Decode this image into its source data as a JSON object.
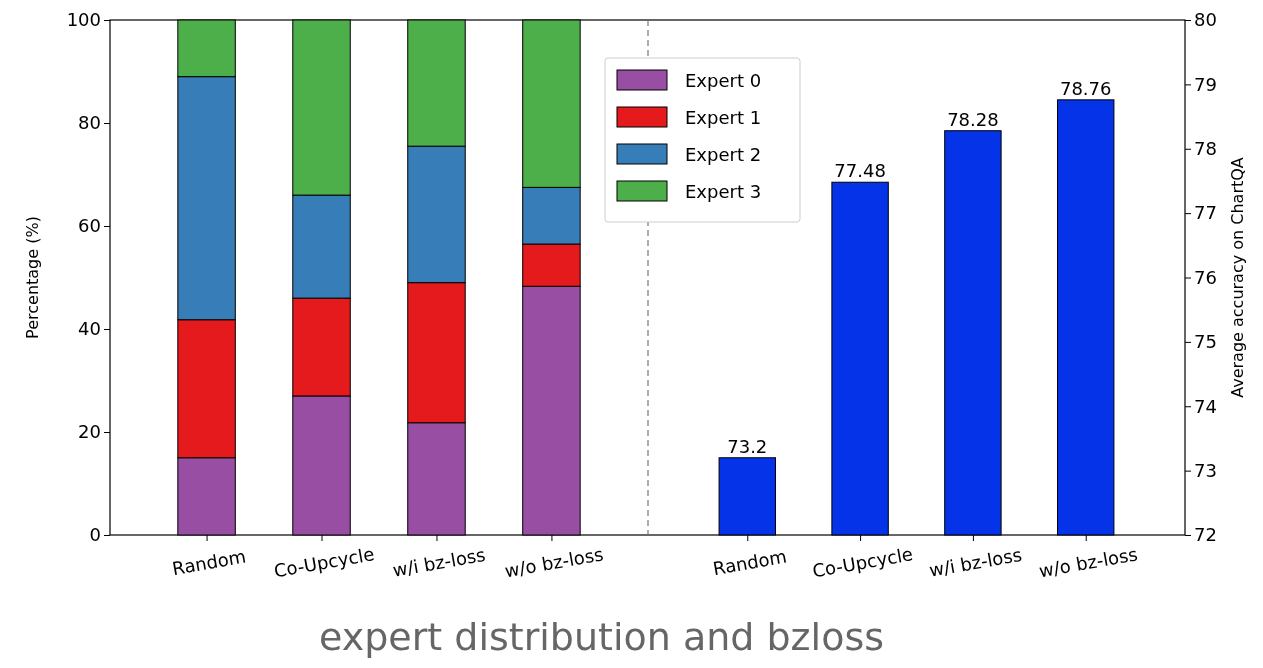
{
  "chart_data": [
    {
      "type": "bar",
      "stacked": true,
      "categories": [
        "Random",
        "Co-Upcycle",
        "w/i bz-loss",
        "w/o bz-loss"
      ],
      "ylabel": "Percentage (%)",
      "ylim": [
        0,
        100
      ],
      "yticks": [
        0,
        20,
        40,
        60,
        80,
        100
      ],
      "legend": "top right",
      "title": "expert distribution and bzloss",
      "series": [
        {
          "name": "Expert 0",
          "color": "#984ea3",
          "values": [
            15,
            27,
            21.8,
            48.3
          ]
        },
        {
          "name": "Expert 1",
          "color": "#e41a1c",
          "values": [
            26.8,
            19,
            27.2,
            8.2
          ]
        },
        {
          "name": "Expert 2",
          "color": "#377eb8",
          "values": [
            47.2,
            20,
            26.5,
            11
          ]
        },
        {
          "name": "Expert 3",
          "color": "#4daf4a",
          "values": [
            11,
            34,
            24.5,
            32.5
          ]
        }
      ]
    },
    {
      "type": "bar",
      "categories": [
        "Random",
        "Co-Upcycle",
        "w/i bz-loss",
        "w/o bz-loss"
      ],
      "y2label": "Average accuracy on ChartQA",
      "y2lim": [
        72,
        80
      ],
      "y2ticks": [
        72,
        73,
        74,
        75,
        76,
        77,
        78,
        79,
        80
      ],
      "data_labels": true,
      "series": [
        {
          "axis": "y2",
          "color": "#0433e8",
          "values": [
            73.2,
            77.48,
            78.28,
            78.76
          ]
        }
      ]
    }
  ]
}
